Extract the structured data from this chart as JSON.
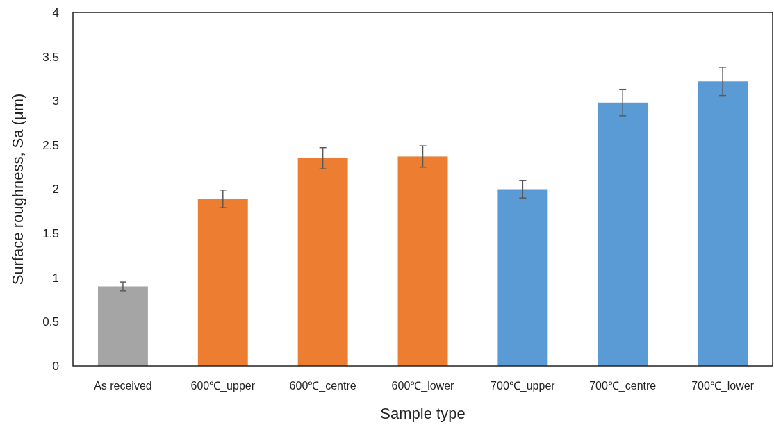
{
  "chart_data": {
    "type": "bar",
    "xlabel": "Sample type",
    "ylabel": "Surface roughness, Sa (μm)",
    "categories": [
      "As received",
      "600℃_upper",
      "600℃_centre",
      "600℃_lower",
      "700℃_upper",
      "700℃_centre",
      "700℃_lower"
    ],
    "values": [
      0.9,
      1.89,
      2.35,
      2.37,
      2.0,
      2.98,
      3.22
    ],
    "colors": [
      "#a5a5a5",
      "#ed7d31",
      "#ed7d31",
      "#ed7d31",
      "#5b9bd5",
      "#5b9bd5",
      "#5b9bd5"
    ],
    "errors": [
      0.05,
      0.1,
      0.12,
      0.12,
      0.1,
      0.15,
      0.16
    ],
    "ylim": [
      0,
      4
    ],
    "yticks": [
      0,
      0.5,
      1,
      1.5,
      2,
      2.5,
      3,
      3.5,
      4
    ],
    "grid": false
  }
}
